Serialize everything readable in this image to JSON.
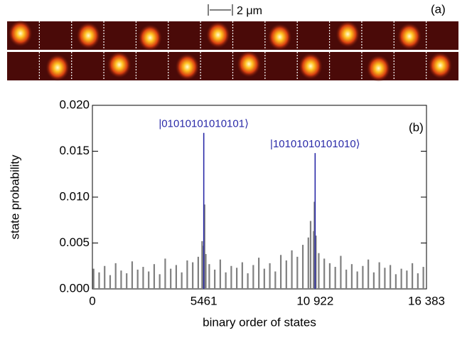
{
  "panel_a": {
    "label": "(a)",
    "scale": "2 μm"
  },
  "chart_data": {
    "type": "spike",
    "panel_label": "(b)",
    "xlabel": "binary order of states",
    "ylabel": "state probability",
    "xlim": [
      0,
      16383
    ],
    "xticks": [
      0,
      5461,
      {
        "value": 10922,
        "label": "10 922"
      },
      {
        "value": 16383,
        "label": "16 383"
      }
    ],
    "ylim": [
      0,
      0.02
    ],
    "yticks": [
      {
        "value": 0,
        "label": "0.000"
      },
      0.005,
      {
        "value": 0.01,
        "label": "0.010"
      },
      0.015,
      {
        "value": 0.02,
        "label": "0.020"
      }
    ],
    "series": [
      {
        "color": "#808080",
        "x": [
          60,
          330,
          600,
          870,
          1140,
          1410,
          1680,
          1950,
          2220,
          2490,
          2760,
          3030,
          3300,
          3570,
          3840,
          4110,
          4380,
          4650,
          4920,
          5190,
          5380,
          5430,
          5500,
          5560,
          5730,
          6000,
          6270,
          6540,
          6810,
          7080,
          7350,
          7620,
          7890,
          8160,
          8430,
          8700,
          8970,
          9240,
          9510,
          9780,
          10050,
          10320,
          10590,
          10700,
          10850,
          10890,
          10960,
          11100,
          11370,
          11640,
          11910,
          12180,
          12450,
          12720,
          12990,
          13260,
          13530,
          13800,
          14070,
          14340,
          14610,
          14880,
          15150,
          15420,
          15690,
          15960,
          16230
        ],
        "values": [
          0.0022,
          0.0018,
          0.0025,
          0.0015,
          0.0028,
          0.002,
          0.0017,
          0.003,
          0.0021,
          0.0024,
          0.0019,
          0.0027,
          0.0016,
          0.0033,
          0.0022,
          0.0026,
          0.0018,
          0.0031,
          0.0029,
          0.0035,
          0.0052,
          0.0047,
          0.0092,
          0.0038,
          0.0027,
          0.0021,
          0.0032,
          0.0018,
          0.0025,
          0.0023,
          0.0029,
          0.0017,
          0.0026,
          0.0034,
          0.0022,
          0.0028,
          0.0019,
          0.0037,
          0.0031,
          0.0042,
          0.0035,
          0.0048,
          0.0056,
          0.0074,
          0.0063,
          0.0095,
          0.0058,
          0.0039,
          0.0033,
          0.0028,
          0.0024,
          0.0036,
          0.0021,
          0.0027,
          0.0019,
          0.0025,
          0.0032,
          0.0018,
          0.0029,
          0.0023,
          0.0026,
          0.0016,
          0.0022,
          0.002,
          0.0028,
          0.0017,
          0.0024
        ]
      },
      {
        "color": "#2a2aa8",
        "x": [
          5461,
          10922
        ],
        "values": [
          0.017,
          0.0148
        ],
        "annotations": [
          "|01010101010101⟩",
          "|10101010101010⟩"
        ]
      }
    ]
  }
}
